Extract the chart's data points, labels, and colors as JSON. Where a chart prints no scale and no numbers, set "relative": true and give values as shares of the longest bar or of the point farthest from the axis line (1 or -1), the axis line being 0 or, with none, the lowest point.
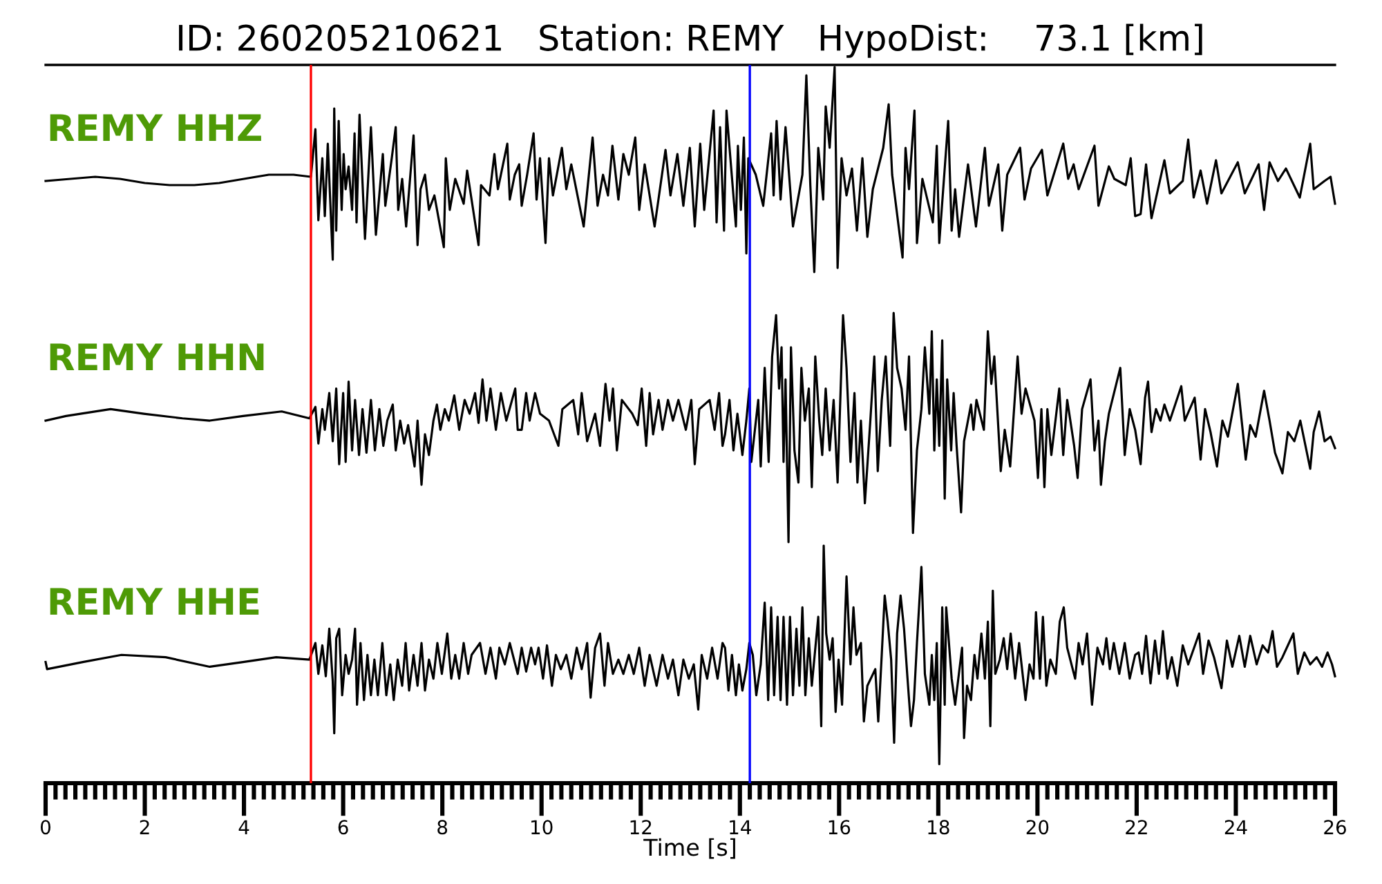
{
  "chart_data": [
    {
      "type": "line",
      "title": "ID: 260205210621   Station: REMY   HypoDist:    73.1 [km]",
      "relative": true,
      "xlim": [
        0,
        26
      ],
      "tick_labels": false,
      "series": [
        {
          "name": "REMY HHZ",
          "color": "#000000",
          "x": [
            0,
            0.5,
            1,
            1.5,
            2,
            2.5,
            3,
            3.5,
            4,
            4.5,
            5,
            5.35,
            5.44,
            5.5,
            5.58,
            5.63,
            5.69,
            5.79,
            5.82,
            5.86,
            5.91,
            5.97,
            6.01,
            6.05,
            6.11,
            6.18,
            6.23,
            6.27,
            6.33,
            6.44,
            6.56,
            6.66,
            6.8,
            6.85,
            6.98,
            7.06,
            7.11,
            7.19,
            7.27,
            7.42,
            7.5,
            7.56,
            7.65,
            7.73,
            7.84,
            8.03,
            8.07,
            8.15,
            8.26,
            8.43,
            8.5,
            8.73,
            8.78,
            8.95,
            9.05,
            9.12,
            9.31,
            9.36,
            9.46,
            9.55,
            9.6,
            9.71,
            9.84,
            9.9,
            9.97,
            10.08,
            10.15,
            10.23,
            10.41,
            10.5,
            10.6,
            10.85,
            11.03,
            11.13,
            11.24,
            11.34,
            11.43,
            11.55,
            11.65,
            11.76,
            11.89,
            11.97,
            12.08,
            12.28,
            12.5,
            12.6,
            12.74,
            12.86,
            12.99,
            13.09,
            13.2,
            13.28,
            13.47,
            13.53,
            13.6,
            13.68,
            13.73,
            13.92,
            13.96,
            14.02,
            14.08,
            14.13,
            14.17,
            14.32,
            14.47,
            14.63,
            14.68,
            14.74,
            14.82,
            14.92,
            15.07,
            15.26,
            15.34,
            15.42,
            15.5,
            15.58,
            15.68,
            15.73,
            15.81,
            15.91,
            15.97,
            16.05,
            16.15,
            16.26,
            16.36,
            16.47,
            16.57,
            16.68,
            16.89,
            17,
            17.07,
            17.28,
            17.34,
            17.41,
            17.52,
            17.57,
            17.68,
            17.89,
            17.97,
            18.02,
            18.2,
            18.27,
            18.34,
            18.42,
            18.6,
            18.76,
            18.94,
            19.02,
            19.21,
            19.29,
            19.39,
            19.65,
            19.74,
            19.87,
            20.09,
            20.2,
            20.52,
            20.62,
            20.73,
            20.83,
            21.15,
            21.23,
            21.44,
            21.55,
            21.78,
            21.88,
            21.97,
            22.08,
            22.19,
            22.3,
            22.56,
            22.67,
            22.93,
            23.04,
            23.15,
            23.29,
            23.42,
            23.6,
            23.71,
            24.04,
            24.18,
            24.46,
            24.57,
            24.68,
            24.85,
            25.01,
            25.29,
            25.5,
            25.57,
            25.79,
            25.91,
            26
          ],
          "values": [
            -0.56,
            -0.55,
            -0.54,
            -0.55,
            -0.57,
            -0.58,
            -0.58,
            -0.57,
            -0.55,
            -0.53,
            -0.53,
            -0.54,
            -0.31,
            -0.75,
            -0.45,
            -0.73,
            -0.38,
            -0.94,
            -0.21,
            -0.8,
            -0.27,
            -0.7,
            -0.43,
            -0.6,
            -0.49,
            -0.7,
            -0.33,
            -0.76,
            -0.24,
            -0.84,
            -0.3,
            -0.82,
            -0.43,
            -0.68,
            -0.45,
            -0.3,
            -0.7,
            -0.55,
            -0.78,
            -0.34,
            -0.87,
            -0.6,
            -0.53,
            -0.7,
            -0.63,
            -0.88,
            -0.45,
            -0.7,
            -0.55,
            -0.67,
            -0.51,
            -0.87,
            -0.58,
            -0.63,
            -0.43,
            -0.6,
            -0.38,
            -0.65,
            -0.53,
            -0.48,
            -0.68,
            -0.53,
            -0.33,
            -0.65,
            -0.45,
            -0.86,
            -0.45,
            -0.63,
            -0.4,
            -0.6,
            -0.48,
            -0.78,
            -0.35,
            -0.68,
            -0.53,
            -0.63,
            -0.39,
            -0.65,
            -0.43,
            -0.53,
            -0.35,
            -0.7,
            -0.48,
            -0.78,
            -0.41,
            -0.63,
            -0.43,
            -0.68,
            -0.4,
            -0.78,
            -0.38,
            -0.7,
            -0.22,
            -0.76,
            -0.3,
            -0.8,
            -0.22,
            -0.78,
            -0.39,
            -0.7,
            -0.35,
            -0.91,
            -0.45,
            -0.53,
            -0.68,
            -0.33,
            -0.63,
            -0.27,
            -0.65,
            -0.3,
            -0.78,
            -0.53,
            -0.05,
            -0.58,
            -1,
            -0.4,
            -0.65,
            -0.2,
            -0.4,
            -0.01,
            -0.98,
            -0.45,
            -0.63,
            -0.5,
            -0.8,
            -0.45,
            -0.83,
            -0.6,
            -0.4,
            -0.19,
            -0.53,
            -0.93,
            -0.4,
            -0.6,
            -0.22,
            -0.86,
            -0.55,
            -0.76,
            -0.39,
            -0.86,
            -0.27,
            -0.8,
            -0.6,
            -0.83,
            -0.48,
            -0.78,
            -0.4,
            -0.68,
            -0.48,
            -0.8,
            -0.53,
            -0.4,
            -0.65,
            -0.5,
            -0.41,
            -0.63,
            -0.38,
            -0.55,
            -0.48,
            -0.6,
            -0.39,
            -0.68,
            -0.49,
            -0.55,
            -0.58,
            -0.45,
            -0.73,
            -0.72,
            -0.48,
            -0.74,
            -0.46,
            -0.62,
            -0.56,
            -0.36,
            -0.64,
            -0.51,
            -0.67,
            -0.46,
            -0.62,
            -0.47,
            -0.62,
            -0.48,
            -0.7,
            -0.47,
            -0.56,
            -0.5,
            -0.64,
            -0.38,
            -0.6,
            -0.56,
            -0.54,
            -0.67
          ]
        }
      ],
      "ref_lines": [
        {
          "axis": "x",
          "value": 5.35,
          "color": "#ff0000"
        },
        {
          "axis": "x",
          "value": 14.2,
          "color": "#0000ff"
        }
      ]
    },
    {
      "type": "line",
      "relative": true,
      "xlim": [
        0,
        26
      ],
      "tick_labels": false,
      "series": [
        {
          "name": "REMY HHN",
          "color": "#000000",
          "x": [
            0,
            0.41,
            1.31,
            1.98,
            2.76,
            3.31,
            3.98,
            4.76,
            5.32,
            5.44,
            5.5,
            5.58,
            5.63,
            5.72,
            5.79,
            5.86,
            5.92,
            6,
            6.05,
            6.11,
            6.18,
            6.24,
            6.32,
            6.39,
            6.47,
            6.56,
            6.64,
            6.73,
            6.81,
            6.89,
            7,
            7.06,
            7.15,
            7.23,
            7.31,
            7.44,
            7.5,
            7.58,
            7.65,
            7.73,
            7.82,
            7.89,
            7.96,
            8.05,
            8.13,
            8.24,
            8.34,
            8.45,
            8.55,
            8.66,
            8.73,
            8.81,
            8.89,
            8.97,
            9.08,
            9.18,
            9.29,
            9.47,
            9.52,
            9.6,
            9.69,
            9.76,
            9.87,
            9.97,
            10.15,
            10.34,
            10.42,
            10.64,
            10.74,
            10.81,
            10.92,
            11.08,
            11.18,
            11.29,
            11.37,
            11.44,
            11.52,
            11.62,
            11.83,
            11.94,
            12.02,
            12.11,
            12.18,
            12.25,
            12.36,
            12.44,
            12.55,
            12.65,
            12.76,
            12.91,
            13.02,
            13.09,
            13.18,
            13.39,
            13.49,
            13.58,
            13.65,
            13.7,
            13.79,
            13.87,
            13.95,
            14.05,
            14.13,
            14.19,
            14.23,
            14.37,
            14.42,
            14.5,
            14.58,
            14.65,
            14.73,
            14.79,
            14.84,
            14.88,
            14.92,
            14.98,
            15.03,
            15.1,
            15.18,
            15.24,
            15.31,
            15.39,
            15.45,
            15.52,
            15.6,
            15.66,
            15.73,
            15.81,
            15.89,
            15.97,
            16.08,
            16.15,
            16.23,
            16.31,
            16.37,
            16.44,
            16.52,
            16.63,
            16.71,
            16.78,
            16.86,
            16.94,
            17.03,
            17.1,
            17.17,
            17.26,
            17.34,
            17.41,
            17.49,
            17.57,
            17.66,
            17.73,
            17.82,
            17.87,
            17.92,
            17.97,
            18.02,
            18.08,
            18.13,
            18.18,
            18.26,
            18.31,
            18.37,
            18.46,
            18.52,
            18.66,
            18.71,
            18.77,
            18.92,
            19,
            19.07,
            19.13,
            19.26,
            19.34,
            19.45,
            19.6,
            19.68,
            19.76,
            19.94,
            20.01,
            20.08,
            20.14,
            20.2,
            20.28,
            20.44,
            20.52,
            20.6,
            20.74,
            20.81,
            20.9,
            21.07,
            21.15,
            21.23,
            21.28,
            21.36,
            21.44,
            21.67,
            21.76,
            21.86,
            21.97,
            22.08,
            22.17,
            22.23,
            22.3,
            22.39,
            22.48,
            22.56,
            22.67,
            22.9,
            22.97,
            23.17,
            23.29,
            23.38,
            23.49,
            23.62,
            23.73,
            23.84,
            24.04,
            24.2,
            24.29,
            24.4,
            24.57,
            24.68,
            24.79,
            24.94,
            25.05,
            25.18,
            25.3,
            25.5,
            25.57,
            25.68,
            25.79,
            25.91,
            26
          ],
          "values": [
            0.53,
            0.55,
            0.58,
            0.56,
            0.54,
            0.53,
            0.55,
            0.57,
            0.54,
            0.59,
            0.43,
            0.58,
            0.49,
            0.65,
            0.44,
            0.67,
            0.34,
            0.65,
            0.35,
            0.7,
            0.4,
            0.62,
            0.38,
            0.58,
            0.39,
            0.62,
            0.4,
            0.58,
            0.42,
            0.53,
            0.6,
            0.4,
            0.53,
            0.43,
            0.51,
            0.33,
            0.53,
            0.25,
            0.47,
            0.38,
            0.53,
            0.6,
            0.49,
            0.58,
            0.53,
            0.64,
            0.49,
            0.62,
            0.56,
            0.65,
            0.52,
            0.71,
            0.53,
            0.67,
            0.49,
            0.65,
            0.53,
            0.67,
            0.49,
            0.49,
            0.65,
            0.53,
            0.65,
            0.56,
            0.53,
            0.42,
            0.58,
            0.62,
            0.47,
            0.65,
            0.44,
            0.56,
            0.42,
            0.69,
            0.53,
            0.67,
            0.4,
            0.62,
            0.56,
            0.51,
            0.67,
            0.42,
            0.65,
            0.47,
            0.62,
            0.49,
            0.62,
            0.53,
            0.62,
            0.49,
            0.62,
            0.34,
            0.58,
            0.62,
            0.49,
            0.65,
            0.42,
            0.47,
            0.62,
            0.4,
            0.56,
            0.38,
            0.53,
            0.67,
            0.35,
            0.62,
            0.33,
            0.76,
            0.35,
            0.81,
            0.99,
            0.67,
            0.85,
            0.35,
            0.71,
            0,
            0.85,
            0.4,
            0.26,
            0.76,
            0.53,
            0.67,
            0.24,
            0.81,
            0.53,
            0.38,
            0.67,
            0.4,
            0.62,
            0.26,
            0.99,
            0.76,
            0.35,
            0.65,
            0.26,
            0.53,
            0.17,
            0.53,
            0.81,
            0.31,
            0.62,
            0.81,
            0.42,
            1,
            0.76,
            0.67,
            0.49,
            0.81,
            0.04,
            0.4,
            0.58,
            0.85,
            0.56,
            0.92,
            0.4,
            0.71,
            0.42,
            0.88,
            0.19,
            0.71,
            0.4,
            0.65,
            0.42,
            0.13,
            0.44,
            0.6,
            0.49,
            0.62,
            0.49,
            0.92,
            0.69,
            0.81,
            0.31,
            0.49,
            0.33,
            0.81,
            0.56,
            0.67,
            0.53,
            0.28,
            0.58,
            0.24,
            0.58,
            0.38,
            0.67,
            0.38,
            0.62,
            0.42,
            0.28,
            0.58,
            0.71,
            0.4,
            0.53,
            0.25,
            0.44,
            0.56,
            0.76,
            0.38,
            0.58,
            0.49,
            0.34,
            0.63,
            0.7,
            0.48,
            0.58,
            0.53,
            0.6,
            0.53,
            0.68,
            0.53,
            0.63,
            0.36,
            0.58,
            0.48,
            0.33,
            0.53,
            0.46,
            0.69,
            0.36,
            0.51,
            0.46,
            0.66,
            0.53,
            0.39,
            0.3,
            0.48,
            0.44,
            0.53,
            0.32,
            0.48,
            0.57,
            0.44,
            0.46,
            0.41
          ]
        }
      ],
      "ref_lines": [
        {
          "axis": "x",
          "value": 5.35,
          "color": "#ff0000"
        },
        {
          "axis": "x",
          "value": 14.2,
          "color": "#0000ff"
        }
      ]
    },
    {
      "type": "line",
      "xlabel": "Time [s]",
      "relative": true,
      "xlim": [
        0,
        26
      ],
      "tick_labels": "x",
      "xticks": [
        0,
        {
          "value": 0.2,
          "label": null
        },
        {
          "value": 0.4,
          "label": null
        },
        {
          "value": 0.6,
          "label": null
        },
        {
          "value": 0.8,
          "label": null
        },
        {
          "value": 1,
          "label": null
        },
        {
          "value": 1.2,
          "label": null
        },
        {
          "value": 1.4,
          "label": null
        },
        {
          "value": 1.6,
          "label": null
        },
        {
          "value": 1.8,
          "label": null
        },
        2,
        {
          "value": 2.2,
          "label": null
        },
        {
          "value": 2.4,
          "label": null
        },
        {
          "value": 2.6,
          "label": null
        },
        {
          "value": 2.8,
          "label": null
        },
        {
          "value": 3,
          "label": null
        },
        {
          "value": 3.2,
          "label": null
        },
        {
          "value": 3.4,
          "label": null
        },
        {
          "value": 3.6,
          "label": null
        },
        {
          "value": 3.8,
          "label": null
        },
        4,
        {
          "value": 4.2,
          "label": null
        },
        {
          "value": 4.4,
          "label": null
        },
        {
          "value": 4.6,
          "label": null
        },
        {
          "value": 4.8,
          "label": null
        },
        {
          "value": 5,
          "label": null
        },
        {
          "value": 5.2,
          "label": null
        },
        {
          "value": 5.4,
          "label": null
        },
        {
          "value": 5.6,
          "label": null
        },
        {
          "value": 5.8,
          "label": null
        },
        6,
        {
          "value": 6.2,
          "label": null
        },
        {
          "value": 6.4,
          "label": null
        },
        {
          "value": 6.6,
          "label": null
        },
        {
          "value": 6.8,
          "label": null
        },
        {
          "value": 7,
          "label": null
        },
        {
          "value": 7.2,
          "label": null
        },
        {
          "value": 7.4,
          "label": null
        },
        {
          "value": 7.6,
          "label": null
        },
        {
          "value": 7.8,
          "label": null
        },
        8,
        {
          "value": 8.2,
          "label": null
        },
        {
          "value": 8.4,
          "label": null
        },
        {
          "value": 8.6,
          "label": null
        },
        {
          "value": 8.8,
          "label": null
        },
        {
          "value": 9,
          "label": null
        },
        {
          "value": 9.2,
          "label": null
        },
        {
          "value": 9.4,
          "label": null
        },
        {
          "value": 9.6,
          "label": null
        },
        {
          "value": 9.8,
          "label": null
        },
        10,
        {
          "value": 10.2,
          "label": null
        },
        {
          "value": 10.4,
          "label": null
        },
        {
          "value": 10.6,
          "label": null
        },
        {
          "value": 10.8,
          "label": null
        },
        {
          "value": 11,
          "label": null
        },
        {
          "value": 11.2,
          "label": null
        },
        {
          "value": 11.4,
          "label": null
        },
        {
          "value": 11.6,
          "label": null
        },
        {
          "value": 11.8,
          "label": null
        },
        12,
        {
          "value": 12.2,
          "label": null
        },
        {
          "value": 12.4,
          "label": null
        },
        {
          "value": 12.6,
          "label": null
        },
        {
          "value": 12.8,
          "label": null
        },
        {
          "value": 13,
          "label": null
        },
        {
          "value": 13.2,
          "label": null
        },
        {
          "value": 13.4,
          "label": null
        },
        {
          "value": 13.6,
          "label": null
        },
        {
          "value": 13.8,
          "label": null
        },
        14,
        {
          "value": 14.2,
          "label": null
        },
        {
          "value": 14.4,
          "label": null
        },
        {
          "value": 14.6,
          "label": null
        },
        {
          "value": 14.8,
          "label": null
        },
        {
          "value": 15,
          "label": null
        },
        {
          "value": 15.2,
          "label": null
        },
        {
          "value": 15.4,
          "label": null
        },
        {
          "value": 15.6,
          "label": null
        },
        {
          "value": 15.8,
          "label": null
        },
        16,
        {
          "value": 16.2,
          "label": null
        },
        {
          "value": 16.4,
          "label": null
        },
        {
          "value": 16.6,
          "label": null
        },
        {
          "value": 16.8,
          "label": null
        },
        {
          "value": 17,
          "label": null
        },
        {
          "value": 17.2,
          "label": null
        },
        {
          "value": 17.4,
          "label": null
        },
        {
          "value": 17.6,
          "label": null
        },
        {
          "value": 17.8,
          "label": null
        },
        18,
        {
          "value": 18.2,
          "label": null
        },
        {
          "value": 18.4,
          "label": null
        },
        {
          "value": 18.6,
          "label": null
        },
        {
          "value": 18.8,
          "label": null
        },
        {
          "value": 19,
          "label": null
        },
        {
          "value": 19.2,
          "label": null
        },
        {
          "value": 19.4,
          "label": null
        },
        {
          "value": 19.6,
          "label": null
        },
        {
          "value": 19.8,
          "label": null
        },
        20,
        {
          "value": 20.2,
          "label": null
        },
        {
          "value": 20.4,
          "label": null
        },
        {
          "value": 20.6,
          "label": null
        },
        {
          "value": 20.8,
          "label": null
        },
        {
          "value": 21,
          "label": null
        },
        {
          "value": 21.2,
          "label": null
        },
        {
          "value": 21.4,
          "label": null
        },
        {
          "value": 21.6,
          "label": null
        },
        {
          "value": 21.8,
          "label": null
        },
        22,
        {
          "value": 22.2,
          "label": null
        },
        {
          "value": 22.4,
          "label": null
        },
        {
          "value": 22.6,
          "label": null
        },
        {
          "value": 22.8,
          "label": null
        },
        {
          "value": 23,
          "label": null
        },
        {
          "value": 23.2,
          "label": null
        },
        {
          "value": 23.4,
          "label": null
        },
        {
          "value": 23.6,
          "label": null
        },
        {
          "value": 23.8,
          "label": null
        },
        24,
        {
          "value": 24.2,
          "label": null
        },
        {
          "value": 24.4,
          "label": null
        },
        {
          "value": 24.6,
          "label": null
        },
        {
          "value": 24.8,
          "label": null
        },
        {
          "value": 25,
          "label": null
        },
        {
          "value": 25.2,
          "label": null
        },
        {
          "value": 25.4,
          "label": null
        },
        {
          "value": 25.6,
          "label": null
        },
        {
          "value": 25.8,
          "label": null
        },
        26
      ],
      "series": [
        {
          "name": "REMY HHE",
          "color": "#000000",
          "x": [
            0,
            0.03,
            0.75,
            1.53,
            2.42,
            3.31,
            3.98,
            4.65,
            5.32,
            5.44,
            5.5,
            5.58,
            5.65,
            5.72,
            5.79,
            5.82,
            5.86,
            5.92,
            5.98,
            6.05,
            6.11,
            6.18,
            6.24,
            6.28,
            6.35,
            6.42,
            6.49,
            6.56,
            6.63,
            6.7,
            6.79,
            6.87,
            6.95,
            7.02,
            7.1,
            7.19,
            7.26,
            7.33,
            7.42,
            7.5,
            7.58,
            7.65,
            7.73,
            7.82,
            7.9,
            7.99,
            8.1,
            8.18,
            8.26,
            8.34,
            8.43,
            8.52,
            8.59,
            8.76,
            8.87,
            8.97,
            9.08,
            9.15,
            9.26,
            9.36,
            9.47,
            9.52,
            9.6,
            9.69,
            9.79,
            9.87,
            9.94,
            10.03,
            10.11,
            10.21,
            10.29,
            10.39,
            10.5,
            10.6,
            10.71,
            10.81,
            10.92,
            10.99,
            11.08,
            11.18,
            11.27,
            11.34,
            11.44,
            11.55,
            11.65,
            11.76,
            11.86,
            11.97,
            12.08,
            12.18,
            12.32,
            12.44,
            12.55,
            12.65,
            12.76,
            12.86,
            12.97,
            13.07,
            13.16,
            13.23,
            13.34,
            13.44,
            13.55,
            13.65,
            13.7,
            13.77,
            13.84,
            13.92,
            13.98,
            14.05,
            14.13,
            14.19,
            14.26,
            14.33,
            14.42,
            14.5,
            14.57,
            14.63,
            14.69,
            14.76,
            14.82,
            14.88,
            14.95,
            15.01,
            15.07,
            15.14,
            15.2,
            15.26,
            15.32,
            15.39,
            15.45,
            15.58,
            15.64,
            15.69,
            15.74,
            15.81,
            15.87,
            15.93,
            15.99,
            16.06,
            16.15,
            16.23,
            16.29,
            16.35,
            16.44,
            16.5,
            16.57,
            16.73,
            16.79,
            16.86,
            16.92,
            16.98,
            17.05,
            17.11,
            17.17,
            17.24,
            17.31,
            17.38,
            17.45,
            17.51,
            17.57,
            17.66,
            17.73,
            17.82,
            17.87,
            17.92,
            17.97,
            18.02,
            18.08,
            18.13,
            18.16,
            18.27,
            18.34,
            18.48,
            18.52,
            18.58,
            18.66,
            18.73,
            18.79,
            18.87,
            18.94,
            19,
            19.05,
            19.1,
            19.15,
            19.24,
            19.32,
            19.39,
            19.46,
            19.55,
            19.63,
            19.76,
            19.84,
            19.92,
            19.97,
            20.05,
            20.11,
            20.18,
            20.26,
            20.37,
            20.45,
            20.53,
            20.6,
            20.76,
            20.83,
            20.91,
            21,
            21.1,
            21.21,
            21.32,
            21.39,
            21.46,
            21.54,
            21.65,
            21.76,
            21.86,
            21.97,
            22.04,
            22.11,
            22.19,
            22.28,
            22.37,
            22.45,
            22.53,
            22.62,
            22.71,
            22.82,
            22.93,
            23.04,
            23.26,
            23.34,
            23.45,
            23.56,
            23.71,
            23.82,
            23.93,
            24.07,
            24.18,
            24.29,
            24.42,
            24.54,
            24.65,
            24.74,
            24.83,
            24.94,
            25.16,
            25.25,
            25.38,
            25.5,
            25.63,
            25.74,
            25.85,
            25.94,
            26
          ],
          "values": [
            0.51,
            0.48,
            0.51,
            0.54,
            0.53,
            0.49,
            0.51,
            0.53,
            0.52,
            0.59,
            0.46,
            0.58,
            0.45,
            0.65,
            0.43,
            0.21,
            0.61,
            0.65,
            0.37,
            0.54,
            0.46,
            0.52,
            0.65,
            0.33,
            0.59,
            0.35,
            0.54,
            0.37,
            0.52,
            0.37,
            0.59,
            0.37,
            0.5,
            0.35,
            0.52,
            0.41,
            0.59,
            0.39,
            0.54,
            0.41,
            0.59,
            0.39,
            0.52,
            0.44,
            0.59,
            0.46,
            0.63,
            0.44,
            0.54,
            0.44,
            0.59,
            0.46,
            0.54,
            0.59,
            0.46,
            0.57,
            0.44,
            0.57,
            0.5,
            0.59,
            0.5,
            0.46,
            0.57,
            0.47,
            0.57,
            0.5,
            0.57,
            0.44,
            0.58,
            0.41,
            0.54,
            0.48,
            0.54,
            0.44,
            0.57,
            0.48,
            0.59,
            0.36,
            0.57,
            0.63,
            0.41,
            0.59,
            0.46,
            0.52,
            0.46,
            0.54,
            0.46,
            0.57,
            0.41,
            0.54,
            0.41,
            0.54,
            0.44,
            0.52,
            0.37,
            0.52,
            0.44,
            0.5,
            0.31,
            0.54,
            0.44,
            0.57,
            0.44,
            0.59,
            0.57,
            0.39,
            0.54,
            0.37,
            0.5,
            0.39,
            0.48,
            0.59,
            0.54,
            0.37,
            0.5,
            0.76,
            0.35,
            0.74,
            0.37,
            0.7,
            0.35,
            0.7,
            0.33,
            0.7,
            0.37,
            0.65,
            0.41,
            0.74,
            0.37,
            0.61,
            0.41,
            0.7,
            0.24,
            1,
            0.63,
            0.52,
            0.61,
            0.3,
            0.52,
            0.33,
            0.87,
            0.5,
            0.74,
            0.54,
            0.59,
            0.26,
            0.41,
            0.48,
            0.26,
            0.54,
            0.79,
            0.68,
            0.52,
            0.17,
            0.63,
            0.79,
            0.65,
            0.44,
            0.24,
            0.35,
            0.59,
            0.91,
            0.46,
            0.33,
            0.54,
            0.35,
            0.59,
            0.08,
            0.74,
            0.33,
            0.74,
            0.44,
            0.33,
            0.57,
            0.19,
            0.41,
            0.35,
            0.54,
            0.44,
            0.63,
            0.44,
            0.68,
            0.24,
            0.81,
            0.46,
            0.52,
            0.61,
            0.48,
            0.63,
            0.44,
            0.59,
            0.35,
            0.5,
            0.44,
            0.72,
            0.44,
            0.7,
            0.41,
            0.52,
            0.46,
            0.68,
            0.74,
            0.57,
            0.44,
            0.59,
            0.5,
            0.63,
            0.33,
            0.57,
            0.5,
            0.61,
            0.48,
            0.59,
            0.46,
            0.59,
            0.44,
            0.54,
            0.55,
            0.46,
            0.62,
            0.42,
            0.6,
            0.46,
            0.64,
            0.44,
            0.53,
            0.41,
            0.58,
            0.5,
            0.63,
            0.46,
            0.6,
            0.53,
            0.4,
            0.6,
            0.49,
            0.62,
            0.49,
            0.62,
            0.5,
            0.58,
            0.55,
            0.64,
            0.49,
            0.53,
            0.63,
            0.46,
            0.55,
            0.5,
            0.53,
            0.49,
            0.55,
            0.5,
            0.45
          ]
        }
      ],
      "ref_lines": [
        {
          "axis": "x",
          "value": 5.35,
          "color": "#ff0000"
        },
        {
          "axis": "x",
          "value": 14.2,
          "color": "#0000ff"
        }
      ]
    }
  ]
}
